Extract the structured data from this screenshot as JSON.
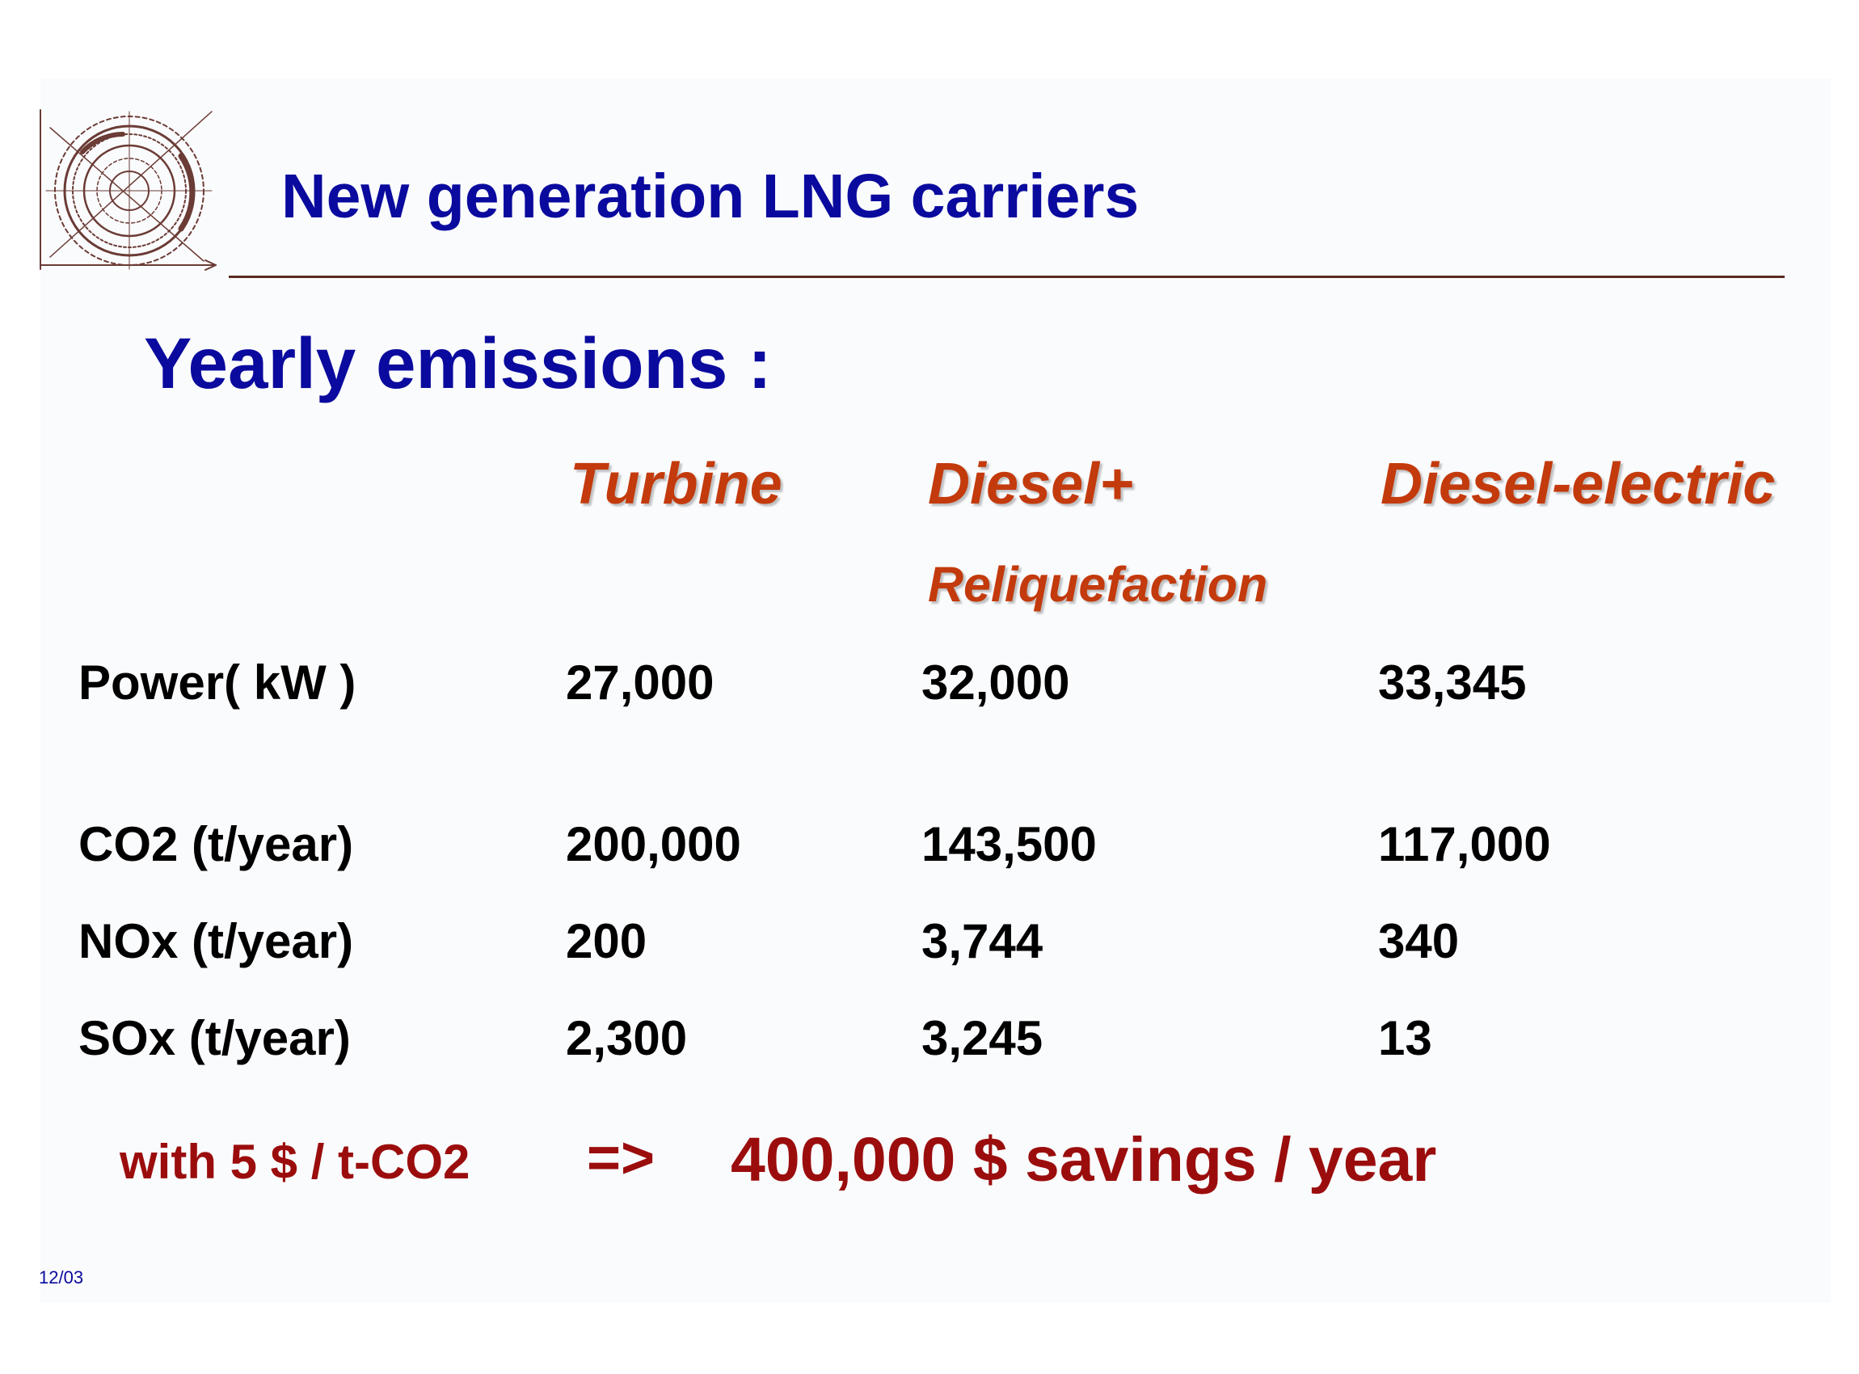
{
  "header": {
    "title": "New generation LNG carriers"
  },
  "subtitle": "Yearly emissions :",
  "table": {
    "columns": [
      "Turbine",
      "Diesel+",
      "Diesel-electric"
    ],
    "column_subheading": "Reliquefaction",
    "rows": [
      {
        "label": "Power( kW )",
        "values": [
          "27,000",
          "32,000",
          "33,345"
        ]
      },
      {
        "label": "CO2  (t/year)",
        "values": [
          "200,000",
          "143,500",
          "117,000"
        ]
      },
      {
        "label": "NOx  (t/year)",
        "values": [
          "200",
          "3,744",
          "340"
        ]
      },
      {
        "label": "SOx  (t/year)",
        "values": [
          "2,300",
          "3,245",
          "13"
        ]
      }
    ]
  },
  "savings": {
    "condition": "with 5 $ / t-CO2",
    "arrow": "=>",
    "result": "400,000 $ savings / year"
  },
  "footer": {
    "date": "12/03"
  },
  "colors": {
    "title": "#0a0a9e",
    "column_heading": "#c33a0c",
    "savings": "#9b0d0d",
    "rule": "#5a2a22"
  }
}
